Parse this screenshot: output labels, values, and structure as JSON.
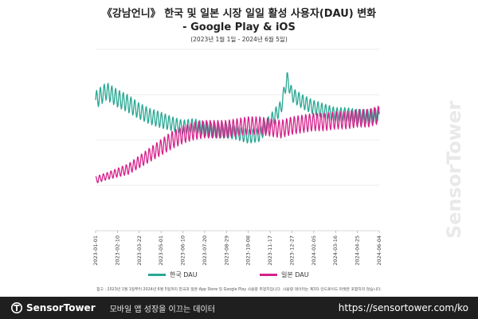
{
  "page": {
    "title_line1": "《강남언니》 한국 및 일본 시장 일일 활성 사용자(DAU) 변화",
    "title_line2": "- Google Play & iOS",
    "subtitle": "(2023년 1월 1일 - 2024년 6월 5일)",
    "note": "참고 : 2023년 1월 1일부터 2024년 6월 5일까지 한국과 일본 App Store 및 Google Play 사용량 추정치입니다. 사용량 데이터는 제3자 안드로이드 마켓은 포함하지 않습니다.",
    "watermark": "SensorTower"
  },
  "footer": {
    "brand": "SensorTower",
    "tagline": "모바일 앱 성장을 이끄는 데이터",
    "url": "https://sensortower.com/ko"
  },
  "colors": {
    "korea": "#2aa893",
    "japan": "#d6218a",
    "grid": "#d7d7d7",
    "footer_bg": "#1f1f1f"
  },
  "chart_data": {
    "type": "line",
    "title": "《강남언니》 한국 및 일본 시장 일일 활성 사용자(DAU) 변화 - Google Play & iOS",
    "xlabel": "",
    "ylabel": "",
    "y_tick_labels": "none shown",
    "ylim": [
      0,
      100
    ],
    "grid": "horizontal",
    "legend_position": "bottom",
    "x_tick_labels": [
      "2023-01-01",
      "2023-02-10",
      "2023-03-22",
      "2023-05-01",
      "2023-06-10",
      "2023-07-20",
      "2023-08-29",
      "2023-10-08",
      "2023-11-17",
      "2023-12-27",
      "2024-02-05",
      "2024-03-16",
      "2024-04-25",
      "2024-06-04"
    ],
    "series": [
      {
        "name": "한국 DAU",
        "color": "#2aa893",
        "x": [
          "2023-01-01",
          "2023-01-21",
          "2023-02-10",
          "2023-03-02",
          "2023-03-22",
          "2023-04-11",
          "2023-05-01",
          "2023-05-21",
          "2023-06-10",
          "2023-06-30",
          "2023-07-20",
          "2023-08-09",
          "2023-08-29",
          "2023-09-18",
          "2023-10-08",
          "2023-10-28",
          "2023-11-17",
          "2023-12-07",
          "2023-12-18",
          "2023-12-27",
          "2024-01-16",
          "2024-02-05",
          "2024-02-25",
          "2024-03-16",
          "2024-04-05",
          "2024-04-25",
          "2024-05-15",
          "2024-06-04"
        ],
        "values": [
          72,
          77,
          73,
          70,
          66,
          63,
          61,
          59,
          57,
          58,
          56,
          55,
          55,
          54,
          52,
          53,
          60,
          68,
          84,
          75,
          71,
          68,
          66,
          64,
          64,
          63,
          63,
          64
        ],
        "weekly_amplitude": [
          5,
          5,
          5,
          5,
          4.5,
          4.5,
          4.5,
          4,
          4,
          4,
          4,
          4,
          4,
          4,
          4,
          4,
          4,
          4,
          4,
          4,
          4,
          4,
          4,
          4,
          4,
          4,
          4,
          4
        ]
      },
      {
        "name": "일본 DAU",
        "color": "#d6218a",
        "x": [
          "2023-01-01",
          "2023-01-21",
          "2023-02-10",
          "2023-03-02",
          "2023-03-22",
          "2023-04-11",
          "2023-05-01",
          "2023-05-21",
          "2023-06-10",
          "2023-06-30",
          "2023-07-20",
          "2023-08-09",
          "2023-08-29",
          "2023-09-18",
          "2023-10-08",
          "2023-10-28",
          "2023-11-17",
          "2023-12-07",
          "2023-12-27",
          "2024-01-16",
          "2024-02-05",
          "2024-02-25",
          "2024-03-16",
          "2024-04-05",
          "2024-04-25",
          "2024-05-15",
          "2024-06-04"
        ],
        "values": [
          28,
          30,
          32,
          34,
          38,
          42,
          46,
          50,
          53,
          55,
          56,
          56,
          56,
          57,
          58,
          58,
          57,
          56,
          58,
          59,
          60,
          60,
          61,
          61,
          62,
          62,
          64
        ],
        "weekly_amplitude": [
          2,
          2,
          2.5,
          3,
          3.5,
          4,
          4.5,
          5,
          5,
          5,
          5,
          5,
          5,
          5,
          5,
          5,
          5,
          5,
          5,
          5,
          5,
          5,
          5,
          5,
          5,
          5,
          5
        ]
      }
    ]
  }
}
